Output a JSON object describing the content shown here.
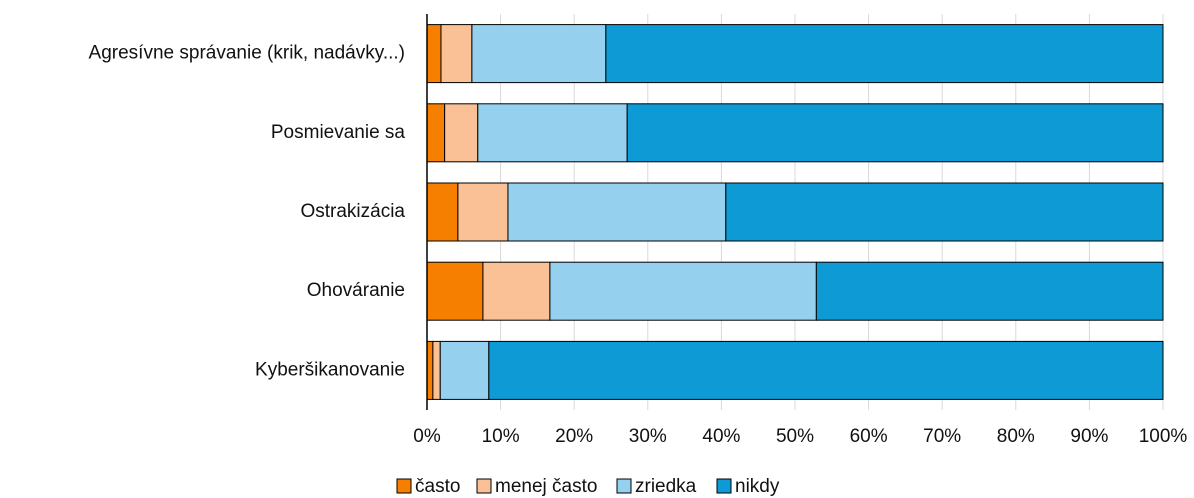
{
  "chart_data": {
    "type": "stacked-barh",
    "categories": [
      "Agresívne správanie (krik, nadávky...)",
      "Posmievanie sa",
      "Ostrakizácia",
      "Ohováranie",
      "Kyberšikanovanie"
    ],
    "series": [
      {
        "name": "často",
        "color": "#f77f00",
        "values": [
          1.9,
          2.4,
          4.2,
          7.6,
          0.8
        ]
      },
      {
        "name": "menej často",
        "color": "#f9c195",
        "values": [
          4.2,
          4.5,
          6.8,
          9.1,
          1.0
        ]
      },
      {
        "name": "zriedka",
        "color": "#95d1ee",
        "values": [
          18.2,
          20.3,
          29.6,
          36.2,
          6.6
        ]
      },
      {
        "name": "nikdy",
        "color": "#0e9ad4",
        "values": [
          75.7,
          72.8,
          59.4,
          47.1,
          91.6
        ]
      }
    ],
    "xlim": [
      0,
      100
    ],
    "xticks": [
      {
        "value": 0,
        "label": "0%"
      },
      {
        "value": 10,
        "label": "10%"
      },
      {
        "value": 20,
        "label": "20%"
      },
      {
        "value": 30,
        "label": "30%"
      },
      {
        "value": 40,
        "label": "40%"
      },
      {
        "value": 50,
        "label": "50%"
      },
      {
        "value": 60,
        "label": "60%"
      },
      {
        "value": 70,
        "label": "70%"
      },
      {
        "value": 80,
        "label": "80%"
      },
      {
        "value": 90,
        "label": "90%"
      },
      {
        "value": 100,
        "label": "100%"
      }
    ],
    "grid": true,
    "legend": "bottom"
  }
}
